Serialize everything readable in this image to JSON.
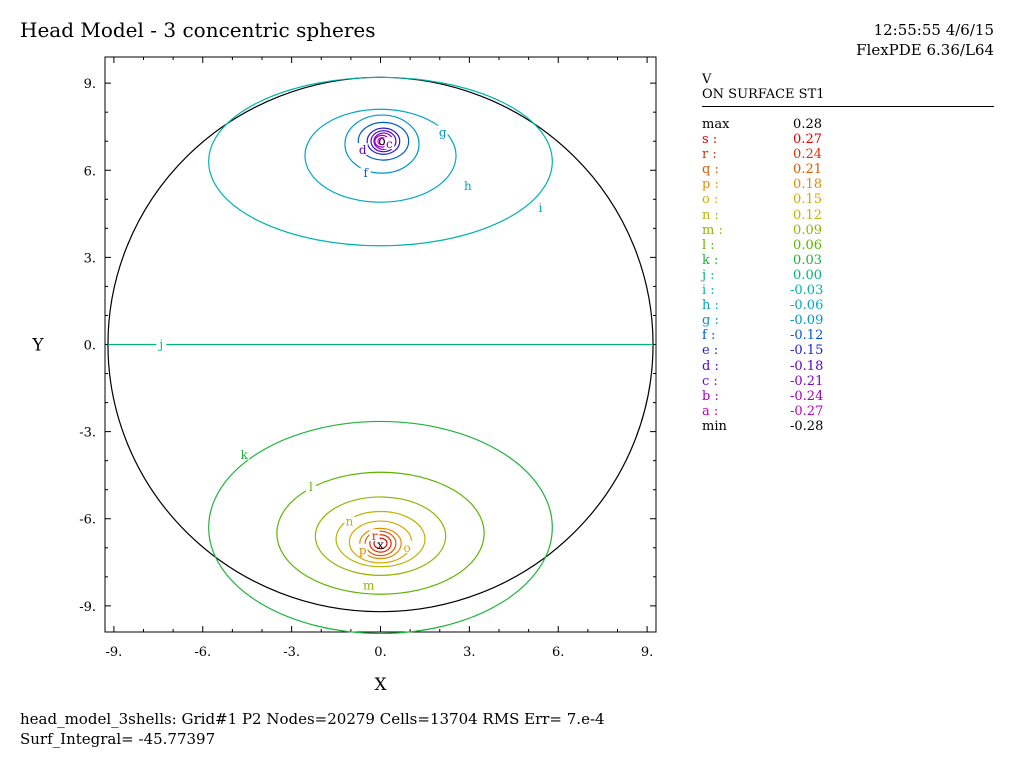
{
  "header": {
    "title": "Head Model - 3 concentric spheres",
    "time": "12:55:55 4/6/15",
    "version": "FlexPDE 6.36/L64"
  },
  "footer": {
    "line1": "head_model_3shells:  Grid#1  P2  Nodes=20279 Cells=13704 RMS Err= 7.e-4",
    "line2": "Surf_Integral= -45.77397"
  },
  "legend": {
    "variable": "V",
    "surface": "ON SURFACE ST1",
    "rows": [
      {
        "label": "max",
        "value": "0.28",
        "color": "#000000"
      },
      {
        "label": "s :",
        "value": "0.27",
        "color": "#e00000"
      },
      {
        "label": "r :",
        "value": "0.24",
        "color": "#e02c00"
      },
      {
        "label": "q :",
        "value": "0.21",
        "color": "#e05a00"
      },
      {
        "label": "p :",
        "value": "0.18",
        "color": "#e08c00"
      },
      {
        "label": "o :",
        "value": "0.15",
        "color": "#d4aa00"
      },
      {
        "label": "n :",
        "value": "0.12",
        "color": "#b8b800"
      },
      {
        "label": "m :",
        "value": "0.09",
        "color": "#96b400"
      },
      {
        "label": "l :",
        "value": "0.06",
        "color": "#5cb400"
      },
      {
        "label": "k :",
        "value": "0.03",
        "color": "#1eb43c"
      },
      {
        "label": "j :",
        "value": "0.00",
        "color": "#00b478"
      },
      {
        "label": "i :",
        "value": "-0.03",
        "color": "#00b4a8"
      },
      {
        "label": "h :",
        "value": "-0.06",
        "color": "#00a8c0"
      },
      {
        "label": "g :",
        "value": "-0.09",
        "color": "#0096c8"
      },
      {
        "label": "f :",
        "value": "-0.12",
        "color": "#005ad2"
      },
      {
        "label": "e :",
        "value": "-0.15",
        "color": "#1e1ed2"
      },
      {
        "label": "d :",
        "value": "-0.18",
        "color": "#5a00c8"
      },
      {
        "label": "c :",
        "value": "-0.21",
        "color": "#8200c8"
      },
      {
        "label": "b :",
        "value": "-0.24",
        "color": "#a000b4"
      },
      {
        "label": "a :",
        "value": "-0.27",
        "color": "#be00be"
      },
      {
        "label": "min",
        "value": "-0.28",
        "color": "#000000"
      }
    ]
  },
  "chart_data": {
    "type": "contour",
    "xlabel": "X",
    "ylabel": "Y",
    "xlim": [
      -9.3,
      9.3
    ],
    "ylim": [
      -9.9,
      9.9
    ],
    "xticks": [
      -9,
      -6,
      -3,
      0,
      3,
      6,
      9
    ],
    "xtick_labels": [
      "-9.",
      "-6.",
      "-3.",
      "0.",
      "3.",
      "6.",
      "9."
    ],
    "yticks": [
      9,
      6,
      3,
      0,
      -3,
      -6,
      -9
    ],
    "ytick_labels": [
      "9.",
      "6.",
      "3.",
      "0.",
      "-3.",
      "-6.",
      "-9."
    ],
    "boundary": {
      "shape": "circle",
      "cx": 0,
      "cy": 0,
      "r": 9.2,
      "color": "#000000"
    },
    "contours": [
      {
        "level": "j",
        "value": 0.0,
        "type": "line",
        "x1": -9.2,
        "x2": 9.2,
        "y": 0
      },
      {
        "level": "i",
        "value": -0.03,
        "cx": 0.0,
        "cy": 6.3,
        "rx": 5.8,
        "ry": 2.9
      },
      {
        "level": "h",
        "value": -0.06,
        "cx": 0.0,
        "cy": 6.5,
        "rx": 2.55,
        "ry": 1.6
      },
      {
        "level": "g",
        "value": -0.09,
        "cx": 0.05,
        "cy": 6.9,
        "rx": 1.25,
        "ry": 1.0
      },
      {
        "level": "f",
        "value": -0.12,
        "cx": 0.1,
        "cy": 7.0,
        "rx": 0.85,
        "ry": 0.65
      },
      {
        "level": "e",
        "value": -0.15,
        "cx": 0.1,
        "cy": 7.0,
        "rx": 0.55,
        "ry": 0.45
      },
      {
        "level": "d",
        "value": -0.18,
        "cx": 0.1,
        "cy": 7.0,
        "rx": 0.42,
        "ry": 0.36
      },
      {
        "level": "c",
        "value": -0.21,
        "cx": 0.1,
        "cy": 7.0,
        "rx": 0.32,
        "ry": 0.28
      },
      {
        "level": "b",
        "value": -0.24,
        "cx": 0.05,
        "cy": 7.0,
        "rx": 0.24,
        "ry": 0.2
      },
      {
        "level": "a",
        "value": -0.27,
        "cx": 0.05,
        "cy": 7.0,
        "rx": 0.14,
        "ry": 0.12
      },
      {
        "level": "k",
        "value": 0.03,
        "cx": 0.0,
        "cy": -6.3,
        "rx": 5.8,
        "ry": 3.65
      },
      {
        "level": "l",
        "value": 0.06,
        "cx": 0.0,
        "cy": -6.5,
        "rx": 3.5,
        "ry": 2.1
      },
      {
        "level": "m",
        "value": 0.09,
        "cx": 0.0,
        "cy": -6.6,
        "rx": 2.2,
        "ry": 1.35
      },
      {
        "level": "n",
        "value": 0.12,
        "cx": 0.0,
        "cy": -6.7,
        "rx": 1.5,
        "ry": 0.95
      },
      {
        "level": "o",
        "value": 0.15,
        "cx": 0.0,
        "cy": -6.8,
        "rx": 1.05,
        "ry": 0.72
      },
      {
        "level": "p",
        "value": 0.18,
        "cx": 0.0,
        "cy": -6.85,
        "rx": 0.7,
        "ry": 0.52
      },
      {
        "level": "q",
        "value": 0.21,
        "cx": 0.0,
        "cy": -6.85,
        "rx": 0.52,
        "ry": 0.42
      },
      {
        "level": "r",
        "value": 0.24,
        "cx": 0.0,
        "cy": -6.85,
        "rx": 0.36,
        "ry": 0.3
      },
      {
        "level": "s",
        "value": 0.27,
        "cx": 0.0,
        "cy": -6.85,
        "rx": 0.22,
        "ry": 0.18
      }
    ],
    "contour_labels": [
      {
        "text": "j",
        "x": -7.4,
        "y": 0.0
      },
      {
        "text": "i",
        "x": 5.4,
        "y": 4.7
      },
      {
        "text": "h",
        "x": 2.95,
        "y": 5.45
      },
      {
        "text": "g",
        "x": 2.1,
        "y": 7.3
      },
      {
        "text": "f",
        "x": -0.5,
        "y": 5.9
      },
      {
        "text": "d",
        "x": -0.6,
        "y": 6.7
      },
      {
        "text": "c",
        "x": 0.3,
        "y": 6.9
      },
      {
        "text": "k",
        "x": -4.6,
        "y": -3.8
      },
      {
        "text": "l",
        "x": -2.35,
        "y": -4.9
      },
      {
        "text": "n",
        "x": -1.05,
        "y": -6.1
      },
      {
        "text": "o",
        "x": 0.9,
        "y": -7.0
      },
      {
        "text": "p",
        "x": -0.6,
        "y": -7.1
      },
      {
        "text": "m",
        "x": -0.4,
        "y": -8.3
      },
      {
        "text": "r",
        "x": -0.2,
        "y": -6.6
      }
    ],
    "markers": [
      {
        "text": "o",
        "x": 0.05,
        "y": 7.0,
        "color": "#000000"
      },
      {
        "text": "x",
        "x": 0.0,
        "y": -6.9,
        "color": "#000000"
      }
    ]
  }
}
